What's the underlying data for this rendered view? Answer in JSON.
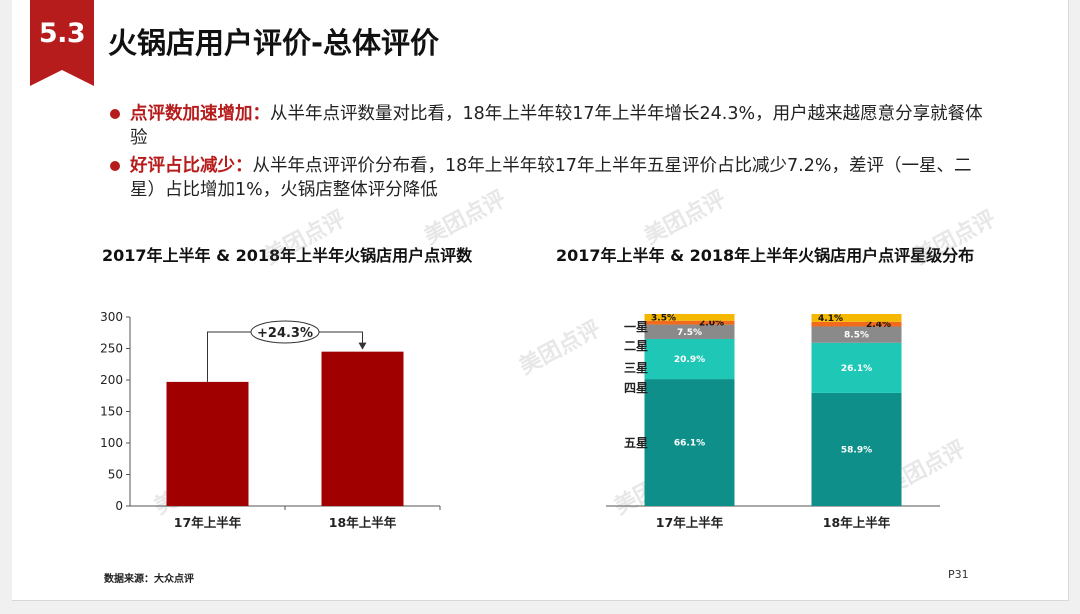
{
  "header": {
    "section_number": "5.3",
    "title": "火锅店用户评价-总体评价"
  },
  "bullets": [
    {
      "keyword": "点评数加速增加：",
      "text": "从半年点评数量对比看，18年上半年较17年上半年增长24.3%，用户越来越愿意分享就餐体验"
    },
    {
      "keyword": "好评占比减少：",
      "text": "从半年点评评价分布看，18年上半年较17年上半年五星评价占比减少7.2%，差评（一星、二星）占比增加1%，火锅店整体评分降低"
    }
  ],
  "watermark_text": "美团点评",
  "chart_data": [
    {
      "type": "bar",
      "title": "2017年上半年 & 2018年上半年火锅店用户点评数",
      "categories": [
        "17年上半年",
        "18年上半年"
      ],
      "values": [
        197,
        245
      ],
      "ylim": [
        0,
        300
      ],
      "yticks": [
        "0",
        "50",
        "100",
        "150",
        "200",
        "250",
        "300"
      ],
      "annotation": "+24.3%",
      "bar_color": "#a00000",
      "grid": false
    },
    {
      "type": "bar",
      "stacked": true,
      "title": "2017年上半年 & 2018年上半年火锅店用户点评星级分布",
      "categories": [
        "17年上半年",
        "18年上半年"
      ],
      "series": [
        {
          "name": "五星",
          "values": [
            66.1,
            58.9
          ],
          "labels": [
            "66.1%",
            "58.9%"
          ],
          "color": "#0e8f8a"
        },
        {
          "name": "四星",
          "values": [
            20.9,
            26.1
          ],
          "labels": [
            "20.9%",
            "26.1%"
          ],
          "color": "#1fc7b6"
        },
        {
          "name": "三星",
          "values": [
            7.5,
            8.5
          ],
          "labels": [
            "7.5%",
            "8.5%"
          ],
          "color": "#8a8a8a"
        },
        {
          "name": "二星",
          "values": [
            2.0,
            2.4
          ],
          "labels": [
            "2.0%",
            "2.4%"
          ],
          "color": "#f26a1b"
        },
        {
          "name": "一星",
          "values": [
            3.5,
            4.1
          ],
          "labels": [
            "3.5%",
            "4.1%"
          ],
          "color": "#f5b800"
        }
      ],
      "legend_placement": "left"
    }
  ],
  "footer": {
    "source": "数据来源：大众点评",
    "page": "P31"
  }
}
